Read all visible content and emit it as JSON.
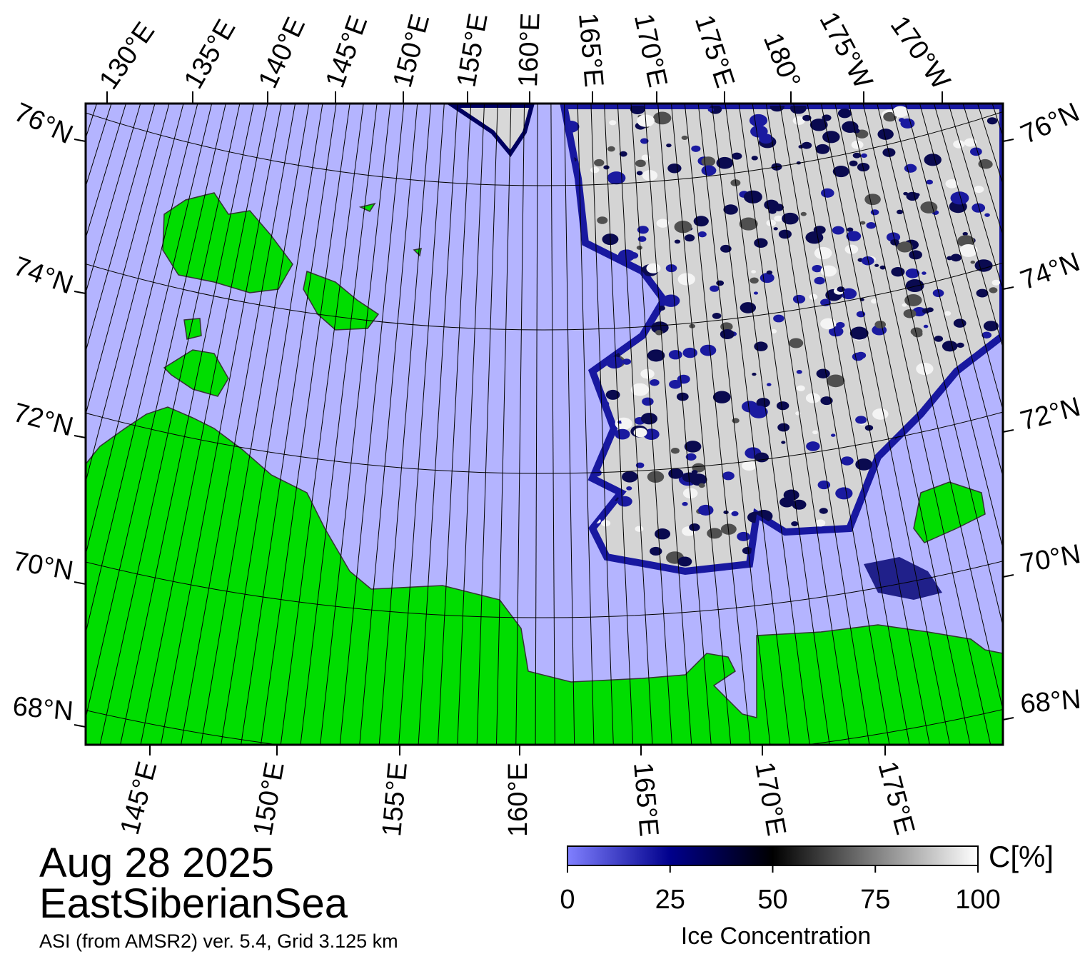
{
  "map": {
    "top_labels": [
      "130°E",
      "135°E",
      "140°E",
      "145°E",
      "150°E",
      "155°E",
      "160°E",
      "165°E",
      "170°E",
      "175°E",
      "180°",
      "175°W",
      "170°W"
    ],
    "left_labels": [
      "76°N",
      "74°N",
      "72°N",
      "70°N",
      "68°N"
    ],
    "right_labels": [
      "76°N",
      "74°N",
      "72°N",
      "70°N",
      "68°N"
    ],
    "bottom_labels": [
      "145°E",
      "150°E",
      "155°E",
      "160°E",
      "165°E",
      "170°E",
      "175°E"
    ]
  },
  "date": "Aug 28 2025",
  "region": "EastSiberianSea",
  "source": "ASI (from AMSR2) ver. 5.4,  Grid 3.125 km",
  "colorbar": {
    "label": "Ice Concentration",
    "unit": "C[%]",
    "ticks": [
      0,
      25,
      50,
      75,
      100
    ],
    "range": [
      0,
      100
    ]
  }
}
